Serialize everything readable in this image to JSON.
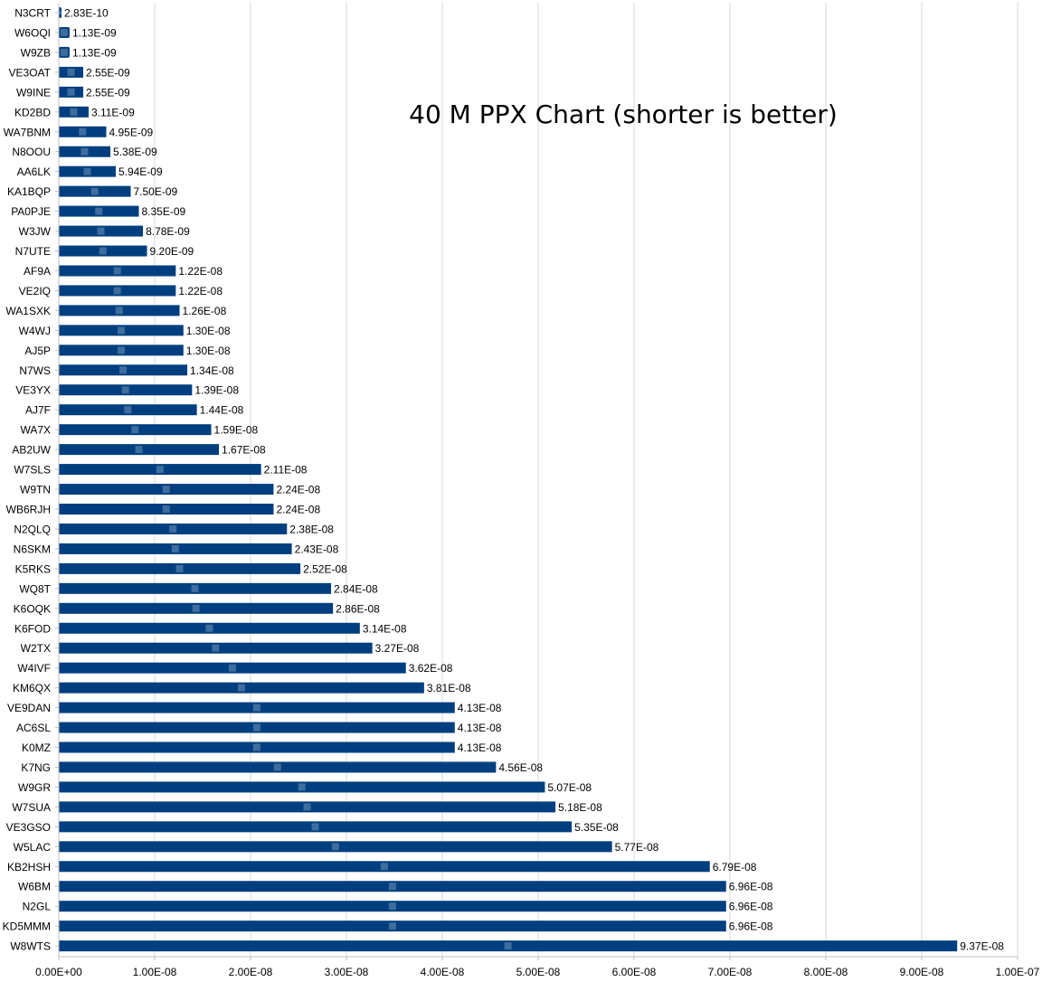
{
  "chart_data": {
    "type": "bar",
    "orientation": "horizontal",
    "title": "40 M PPX Chart (shorter is better)",
    "xlabel": "",
    "ylabel": "",
    "xlim": [
      0,
      1e-07
    ],
    "x_ticks": [
      "0.00E+00",
      "1.00E-08",
      "2.00E-08",
      "3.00E-08",
      "4.00E-08",
      "5.00E-08",
      "6.00E-08",
      "7.00E-08",
      "8.00E-08",
      "9.00E-08",
      "1.00E-07"
    ],
    "x_tick_values": [
      0,
      1e-08,
      2e-08,
      3e-08,
      4e-08,
      5e-08,
      6e-08,
      7e-08,
      8e-08,
      9e-08,
      1e-07
    ],
    "grid": "vertical",
    "legend": "none",
    "bar_color": "#003f7f",
    "marker_color": "#3d6d9e",
    "categories": [
      "N3CRT",
      "W6OQI",
      "W9ZB",
      "VE3OAT",
      "W9INE",
      "KD2BD",
      "WA7BNM",
      "N8OOU",
      "AA6LK",
      "KA1BQP",
      "PA0PJE",
      "W3JW",
      "N7UTE",
      "AF9A",
      "VE2IQ",
      "WA1SXK",
      "W4WJ",
      "AJ5P",
      "N7WS",
      "VE3YX",
      "AJ7F",
      "WA7X",
      "AB2UW",
      "W7SLS",
      "W9TN",
      "WB6RJH",
      "N2QLQ",
      "N6SKM",
      "K5RKS",
      "WQ8T",
      "K6OQK",
      "K6FOD",
      "W2TX",
      "W4IVF",
      "KM6QX",
      "VE9DAN",
      "AC6SL",
      "K0MZ",
      "K7NG",
      "W9GR",
      "W7SUA",
      "VE3GSO",
      "W5LAC",
      "KB2HSH",
      "W6BM",
      "N2GL",
      "KD5MMM",
      "W8WTS"
    ],
    "values": [
      2.83e-10,
      1.13e-09,
      1.13e-09,
      2.55e-09,
      2.55e-09,
      3.11e-09,
      4.95e-09,
      5.38e-09,
      5.94e-09,
      7.5e-09,
      8.35e-09,
      8.78e-09,
      9.2e-09,
      1.22e-08,
      1.22e-08,
      1.26e-08,
      1.3e-08,
      1.3e-08,
      1.34e-08,
      1.39e-08,
      1.44e-08,
      1.59e-08,
      1.67e-08,
      2.11e-08,
      2.24e-08,
      2.24e-08,
      2.38e-08,
      2.43e-08,
      2.52e-08,
      2.84e-08,
      2.86e-08,
      3.14e-08,
      3.27e-08,
      3.62e-08,
      3.81e-08,
      4.13e-08,
      4.13e-08,
      4.13e-08,
      4.56e-08,
      5.07e-08,
      5.18e-08,
      5.35e-08,
      5.77e-08,
      6.79e-08,
      6.96e-08,
      6.96e-08,
      6.96e-08,
      9.37e-08
    ],
    "value_labels": [
      "2.83E-10",
      "1.13E-09",
      "1.13E-09",
      "2.55E-09",
      "2.55E-09",
      "3.11E-09",
      "4.95E-09",
      "5.38E-09",
      "5.94E-09",
      "7.50E-09",
      "8.35E-09",
      "8.78E-09",
      "9.20E-09",
      "1.22E-08",
      "1.22E-08",
      "1.26E-08",
      "1.30E-08",
      "1.30E-08",
      "1.34E-08",
      "1.39E-08",
      "1.44E-08",
      "1.59E-08",
      "1.67E-08",
      "2.11E-08",
      "2.24E-08",
      "2.24E-08",
      "2.38E-08",
      "2.43E-08",
      "2.52E-08",
      "2.84E-08",
      "2.86E-08",
      "3.14E-08",
      "3.27E-08",
      "3.62E-08",
      "3.81E-08",
      "4.13E-08",
      "4.13E-08",
      "4.13E-08",
      "4.56E-08",
      "5.07E-08",
      "5.18E-08",
      "5.35E-08",
      "5.77E-08",
      "6.79E-08",
      "6.96E-08",
      "6.96E-08",
      "6.96E-08",
      "9.37E-08"
    ]
  }
}
